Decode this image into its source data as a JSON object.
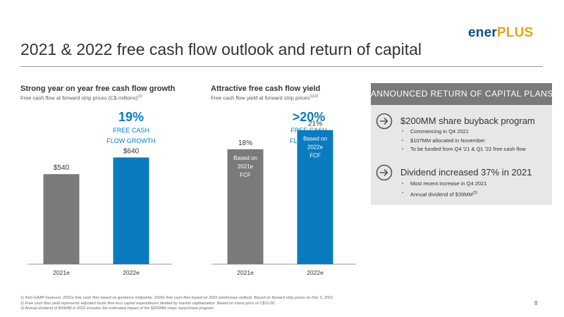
{
  "logo": {
    "part1": "ener",
    "part2": "PLUS"
  },
  "title": "2021 & 2022 free cash flow outlook and return of capital",
  "left_panel": {
    "title": "Strong year on year free cash flow growth",
    "subtitle": "Free cash flow at forward strip prices (C$ millions)",
    "subtitle_note": "(1)",
    "stat_big": "19%",
    "stat_line1": "FREE CASH",
    "stat_line2": "FLOW GROWTH"
  },
  "right_panel": {
    "title": "Attractive free cash flow yield",
    "subtitle": "Free cash flow yield at forward strip prices",
    "subtitle_note": "(1)(2)",
    "stat_big": ">20%",
    "stat_line1": "FREE CASH",
    "stat_line2": "FLOW YIELD"
  },
  "chart_data": [
    {
      "type": "bar",
      "categories": [
        "2021e",
        "2022e"
      ],
      "values": [
        540,
        640
      ],
      "data_labels": [
        "$540",
        "$640"
      ],
      "colors": [
        "#7a7a7a",
        "#0a7bbf"
      ],
      "title": "Strong year on year free cash flow growth",
      "ylabel": "Free cash flow at forward strip prices (C$ millions)",
      "ylim": [
        0,
        900
      ],
      "grid": false
    },
    {
      "type": "bar",
      "categories": [
        "2021e",
        "2022e"
      ],
      "values": [
        18,
        21
      ],
      "data_labels": [
        "18%",
        "21%"
      ],
      "inner_labels": [
        [
          "Based on",
          "2021e",
          "FCF"
        ],
        [
          "Based on",
          "2022e",
          "FCF"
        ]
      ],
      "colors": [
        "#7a7a7a",
        "#0a7bbf"
      ],
      "title": "Attractive free cash flow yield",
      "ylabel": "Free cash flow yield at forward strip prices",
      "ylim": [
        0,
        23.5
      ],
      "grid": false
    }
  ],
  "plans": {
    "header": "ANNOUNCED RETURN OF CAPITAL PLANS",
    "buyback": {
      "heading": "$200MM share buyback program",
      "bullets": [
        "Commencing in Q4 2021",
        "$107MM allocated in November",
        "To be funded from Q4 '21 & Q1 '22 free cash flow"
      ]
    },
    "dividend": {
      "heading": "Dividend increased 37% in 2021",
      "bullets": [
        "Most recent increase in Q4 2021",
        "Annual dividend of $39MM"
      ],
      "bullet2_note": "(3)"
    }
  },
  "footnotes": [
    "1)  Non-GAAP measure. 2021e free cash flow based on guidance midpoints; 2022e free cash flow based on 2022 preliminary outlook. Based on forward strip prices on Nov 3, 2021.",
    "2)  Free cash flow yield represents adjusted funds flow less capital expenditures divided by market capitalization.  Based on share price of C$12.00.",
    "3)  Annual dividend of $39MM in 2022 includes the estimated impact of the $200MM share repurchase program."
  ],
  "page_number": "8"
}
